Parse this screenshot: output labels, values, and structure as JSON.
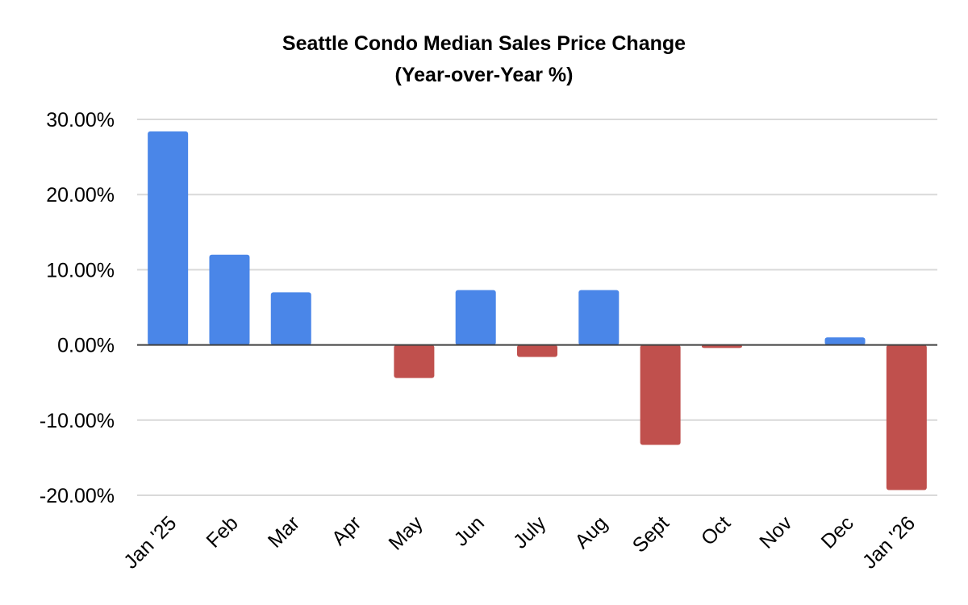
{
  "chart_data": {
    "type": "bar",
    "title": "Seattle Condo Median Sales Price Change",
    "subtitle": "(Year-over-Year %)",
    "xlabel": "",
    "ylabel": "",
    "categories": [
      "Jan '25",
      "Feb",
      "Mar",
      "Apr",
      "May",
      "Jun",
      "July",
      "Aug",
      "Sept",
      "Oct",
      "Nov",
      "Dec",
      "Jan '26"
    ],
    "values": [
      28.4,
      12.0,
      7.0,
      0.0,
      -4.4,
      7.3,
      -1.6,
      7.3,
      -13.3,
      -0.4,
      0.0,
      1.0,
      -19.3
    ],
    "value_unit": "%",
    "ylim": [
      -20,
      30
    ],
    "yticks": [
      30,
      20,
      10,
      0,
      -10,
      -20
    ],
    "ytick_labels": [
      "30.00%",
      "20.00%",
      "10.00%",
      "0.00%",
      "-10.00%",
      "-20.00%"
    ],
    "grid": true,
    "legend": "none",
    "colors": {
      "positive": "#4a86e8",
      "negative": "#c0504d",
      "grid": "#d9d9d9",
      "zero_line": "#404040"
    }
  }
}
